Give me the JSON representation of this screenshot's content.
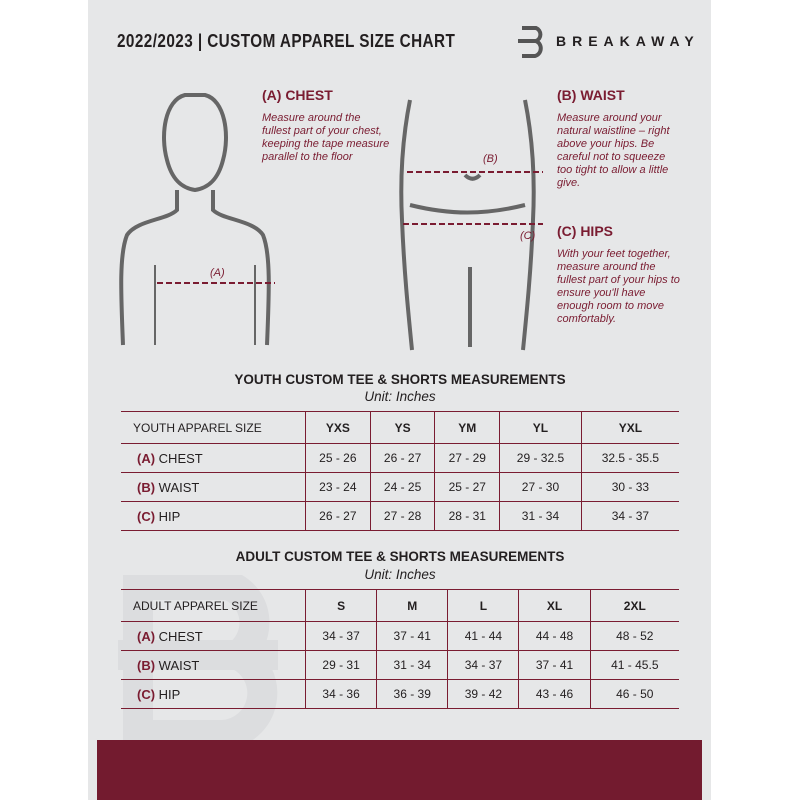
{
  "header": {
    "title": "2022/2023 | CUSTOM APPAREL SIZE CHART",
    "brand": "BREAKAWAY"
  },
  "colors": {
    "accent": "#7a1c31",
    "background": "#e6e7e8"
  },
  "measures": {
    "chest": {
      "title": "(A) CHEST",
      "desc": "Measure around the fullest part of your chest, keeping the tape measure parallel to the floor",
      "marker": "(A)"
    },
    "waist": {
      "title": "(B) WAIST",
      "desc": "Measure around your natural waistline – right above your hips. Be careful not to squeeze too tight to allow a little give.",
      "marker": "(B)"
    },
    "hips": {
      "title": "(C) HIPS",
      "desc": "With your feet together, measure around the fullest part of your hips to ensure you'll have enough room to move comfortably.",
      "marker": "(C)"
    }
  },
  "youth": {
    "title": "YOUTH CUSTOM TEE & SHORTS MEASUREMENTS",
    "unit": "Unit: Inches",
    "label": "YOUTH APPAREL SIZE",
    "sizes": [
      "YXS",
      "YS",
      "YM",
      "YL",
      "YXL"
    ],
    "rows": [
      {
        "letter": "(A)",
        "name": "CHEST",
        "values": [
          "25 - 26",
          "26 - 27",
          "27 - 29",
          "29 - 32.5",
          "32.5 - 35.5"
        ]
      },
      {
        "letter": "(B)",
        "name": "WAIST",
        "values": [
          "23 - 24",
          "24 - 25",
          "25 - 27",
          "27 - 30",
          "30 - 33"
        ]
      },
      {
        "letter": "(C)",
        "name": "HIP",
        "values": [
          "26 - 27",
          "27 - 28",
          "28 - 31",
          "31 - 34",
          "34 - 37"
        ]
      }
    ]
  },
  "adult": {
    "title": "ADULT CUSTOM TEE & SHORTS MEASUREMENTS",
    "unit": "Unit: Inches",
    "label": "ADULT APPAREL SIZE",
    "sizes": [
      "S",
      "M",
      "L",
      "XL",
      "2XL"
    ],
    "rows": [
      {
        "letter": "(A)",
        "name": "CHEST",
        "values": [
          "34 - 37",
          "37 - 41",
          "41 - 44",
          "44 - 48",
          "48 - 52"
        ]
      },
      {
        "letter": "(B)",
        "name": "WAIST",
        "values": [
          "29 - 31",
          "31 - 34",
          "34 - 37",
          "37 - 41",
          "41 - 45.5"
        ]
      },
      {
        "letter": "(C)",
        "name": "HIP",
        "values": [
          "34 - 36",
          "36 - 39",
          "39 - 42",
          "43 - 46",
          "46 - 50"
        ]
      }
    ]
  }
}
